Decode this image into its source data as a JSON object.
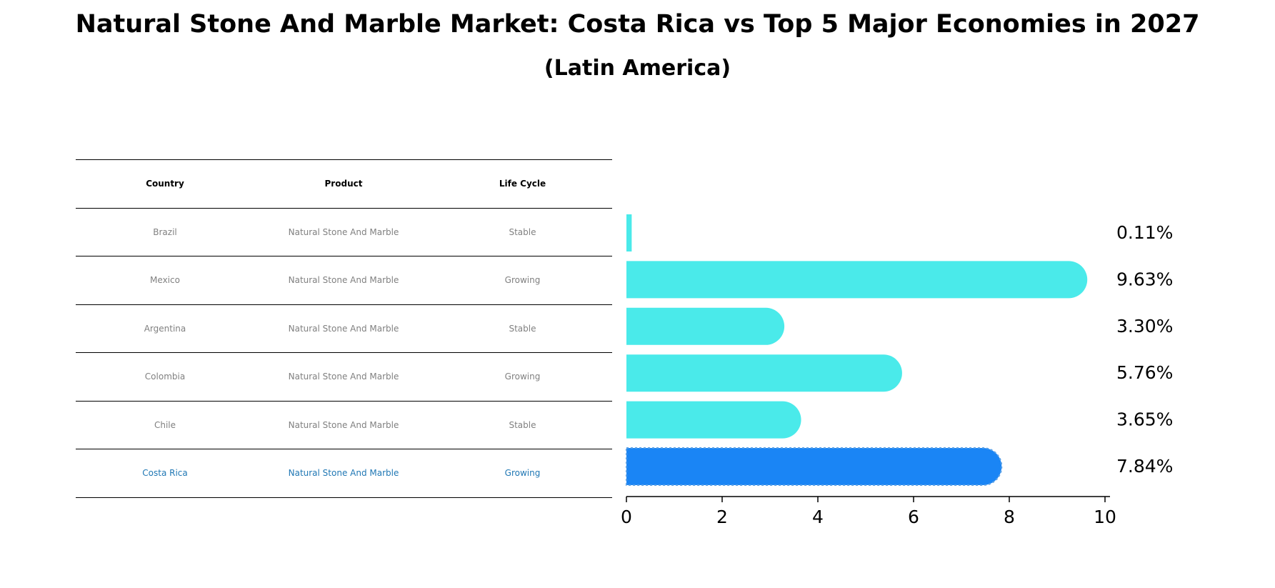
{
  "title": "Natural Stone And Marble Market: Costa Rica vs Top 5 Major Economies in 2027",
  "subtitle": "(Latin America)",
  "table": {
    "headers": [
      "Country",
      "Product",
      "Life Cycle"
    ],
    "rows": [
      {
        "country": "Brazil",
        "product": "Natural Stone And Marble",
        "life_cycle": "Stable"
      },
      {
        "country": "Mexico",
        "product": "Natural Stone And Marble",
        "life_cycle": "Growing"
      },
      {
        "country": "Argentina",
        "product": "Natural Stone And Marble",
        "life_cycle": "Stable"
      },
      {
        "country": "Colombia",
        "product": "Natural Stone And Marble",
        "life_cycle": "Growing"
      },
      {
        "country": "Chile",
        "product": "Natural Stone And Marble",
        "life_cycle": "Stable"
      },
      {
        "country": "Costa Rica",
        "product": "Natural Stone And Marble",
        "life_cycle": "Growing"
      }
    ]
  },
  "chart_data": {
    "type": "bar",
    "orientation": "horizontal",
    "categories": [
      "Brazil",
      "Mexico",
      "Argentina",
      "Colombia",
      "Chile",
      "Costa Rica"
    ],
    "values": [
      0.11,
      9.63,
      3.3,
      5.76,
      3.65,
      7.84
    ],
    "value_labels": [
      "0.11%",
      "9.63%",
      "3.30%",
      "5.76%",
      "3.65%",
      "7.84%"
    ],
    "xlim": [
      0,
      10
    ],
    "xticks": [
      0,
      2,
      4,
      6,
      8,
      10
    ],
    "highlight_category": "Costa Rica",
    "colors": {
      "default": "#4aeaea",
      "highlight": "#1a85f5"
    },
    "grid": false,
    "legend": "none"
  }
}
